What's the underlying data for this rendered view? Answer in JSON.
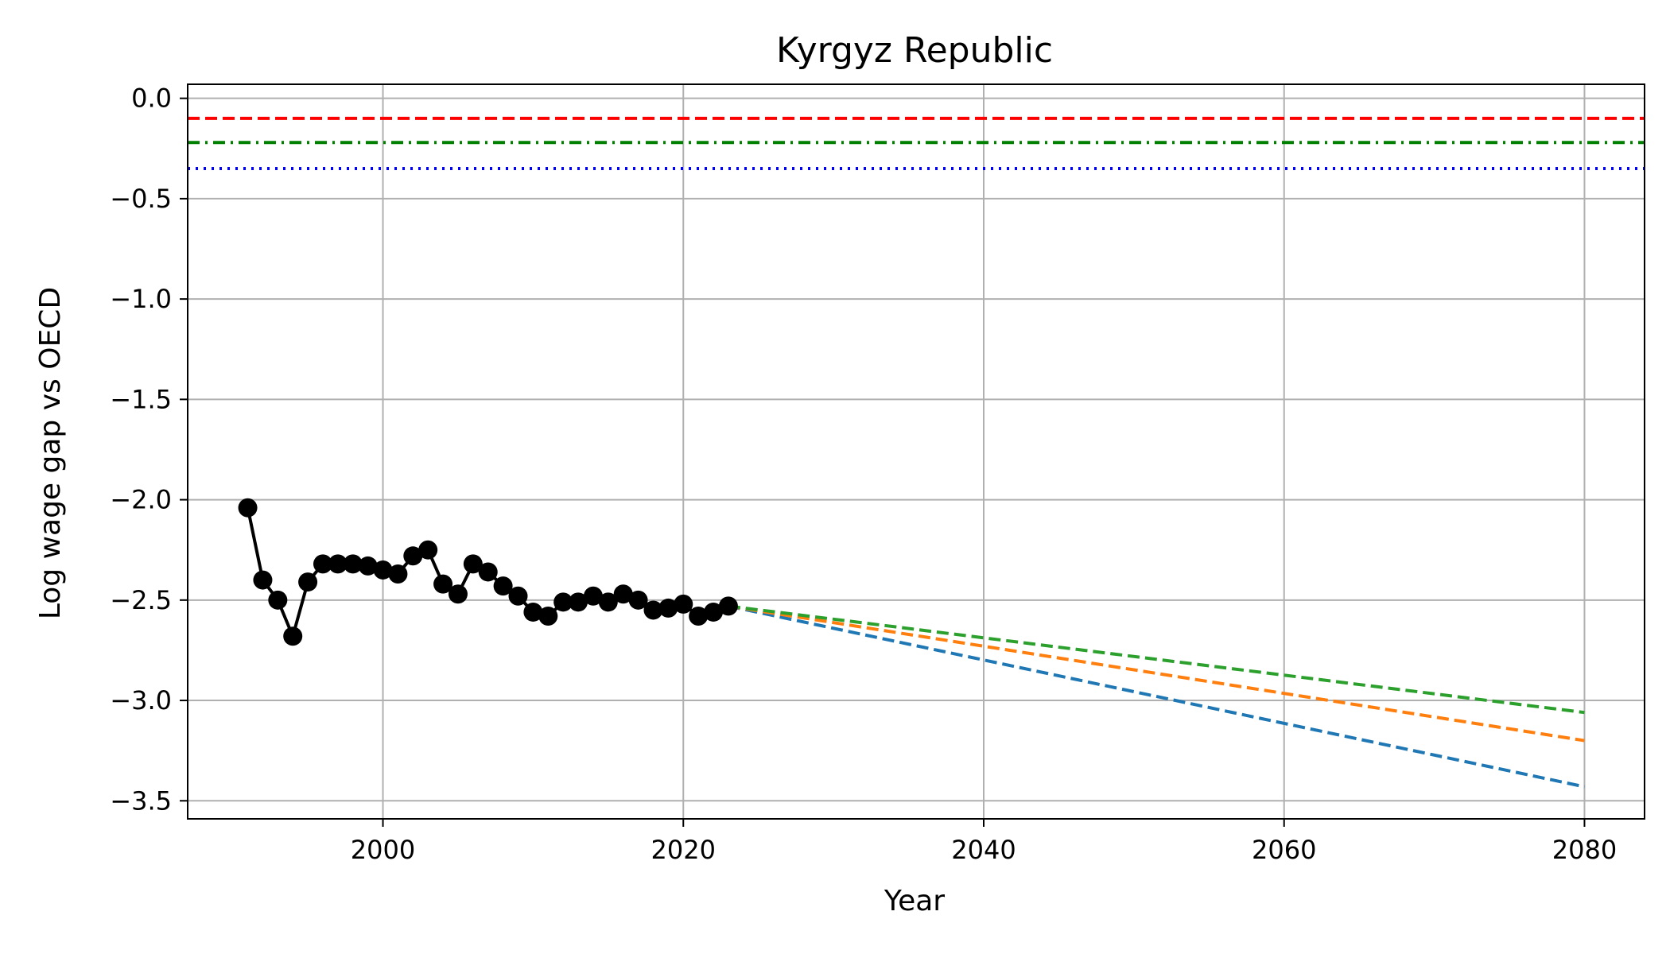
{
  "chart_data": {
    "type": "line",
    "title": "Kyrgyz Republic",
    "xlabel": "Year",
    "ylabel": "Log wage gap vs OECD",
    "xlim": [
      1987,
      2084
    ],
    "ylim": [
      -3.59,
      0.07
    ],
    "xticks": [
      2000,
      2020,
      2040,
      2060,
      2080
    ],
    "xtick_labels": [
      "2000",
      "2020",
      "2040",
      "2060",
      "2080"
    ],
    "yticks": [
      0.0,
      -0.5,
      -1.0,
      -1.5,
      -2.0,
      -2.5,
      -3.0,
      -3.5
    ],
    "ytick_labels": [
      "0.0",
      "−0.5",
      "−1.0",
      "−1.5",
      "−2.0",
      "−2.5",
      "−3.0",
      "−3.5"
    ],
    "grid": true,
    "historical": {
      "color": "#000000",
      "x": [
        1991,
        1992,
        1993,
        1994,
        1995,
        1996,
        1997,
        1998,
        1999,
        2000,
        2001,
        2002,
        2003,
        2004,
        2005,
        2006,
        2007,
        2008,
        2009,
        2010,
        2011,
        2012,
        2013,
        2014,
        2015,
        2016,
        2017,
        2018,
        2019,
        2020,
        2021,
        2022,
        2023
      ],
      "y": [
        -2.04,
        -2.4,
        -2.5,
        -2.68,
        -2.41,
        -2.32,
        -2.32,
        -2.32,
        -2.33,
        -2.35,
        -2.37,
        -2.28,
        -2.25,
        -2.42,
        -2.47,
        -2.32,
        -2.36,
        -2.43,
        -2.48,
        -2.56,
        -2.58,
        -2.51,
        -2.51,
        -2.48,
        -2.51,
        -2.47,
        -2.5,
        -2.55,
        -2.54,
        -2.52,
        -2.58,
        -2.56,
        -2.53
      ]
    },
    "projections": [
      {
        "color": "#1f77b4",
        "x": [
          2023,
          2080
        ],
        "y": [
          -2.53,
          -3.43
        ]
      },
      {
        "color": "#ff7f0e",
        "x": [
          2023,
          2080
        ],
        "y": [
          -2.53,
          -3.2
        ]
      },
      {
        "color": "#2ca02c",
        "x": [
          2023,
          2080
        ],
        "y": [
          -2.53,
          -3.06
        ]
      }
    ],
    "reference_lines": [
      {
        "y": -0.1,
        "color": "#ff0000",
        "style": "dashed"
      },
      {
        "y": -0.22,
        "color": "#008000",
        "style": "dashdot"
      },
      {
        "y": -0.35,
        "color": "#0000ff",
        "style": "dotted"
      }
    ]
  }
}
